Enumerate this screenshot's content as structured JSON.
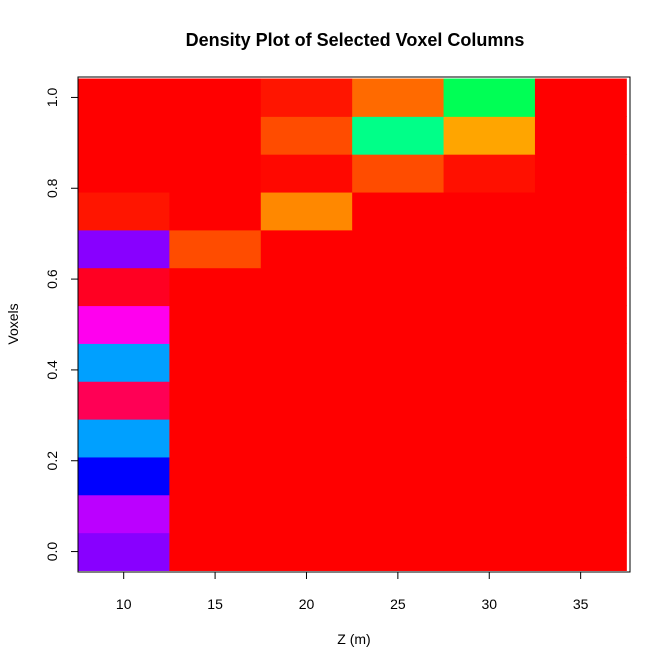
{
  "chart_data": {
    "type": "heatmap",
    "title": "Density Plot of Selected Voxel Columns",
    "xlabel": "Z (m)",
    "ylabel": "Voxels",
    "xlim": [
      7.5,
      37.7
    ],
    "ylim": [
      -0.045,
      1.045
    ],
    "x_ticks": [
      10,
      15,
      20,
      25,
      30,
      35
    ],
    "y_ticks": [
      0.0,
      0.2,
      0.4,
      0.6,
      0.8,
      1.0
    ],
    "y_tick_labels": [
      "0.0",
      "0.2",
      "0.4",
      "0.6",
      "0.8",
      "1.0"
    ],
    "grid": false,
    "x_centers": [
      10,
      15,
      20,
      25,
      30,
      35
    ],
    "y_centers": [
      0.0,
      0.0833,
      0.1667,
      0.25,
      0.3333,
      0.4167,
      0.5,
      0.5833,
      0.6667,
      0.75,
      0.8333,
      0.9167,
      1.0
    ],
    "cell_colors": [
      [
        "#8800ff",
        "#ff0000",
        "#ff0000",
        "#ff0000",
        "#ff0000",
        "#ff0000"
      ],
      [
        "#bb00ff",
        "#ff0000",
        "#ff0000",
        "#ff0000",
        "#ff0000",
        "#ff0000"
      ],
      [
        "#0000ff",
        "#ff0000",
        "#ff0000",
        "#ff0000",
        "#ff0000",
        "#ff0000"
      ],
      [
        "#00a0ff",
        "#ff0000",
        "#ff0000",
        "#ff0000",
        "#ff0000",
        "#ff0000"
      ],
      [
        "#ff0055",
        "#ff0000",
        "#ff0000",
        "#ff0000",
        "#ff0000",
        "#ff0000"
      ],
      [
        "#00a0ff",
        "#ff0000",
        "#ff0000",
        "#ff0000",
        "#ff0000",
        "#ff0000"
      ],
      [
        "#ff00ee",
        "#ff0000",
        "#ff0000",
        "#ff0000",
        "#ff0000",
        "#ff0000"
      ],
      [
        "#ff0022",
        "#ff0000",
        "#ff0000",
        "#ff0000",
        "#ff0000",
        "#ff0000"
      ],
      [
        "#8800ff",
        "#ff4c00",
        "#ff0000",
        "#ff0000",
        "#ff0000",
        "#ff0000"
      ],
      [
        "#ff1500",
        "#ff0000",
        "#ff8800",
        "#ff0000",
        "#ff0000",
        "#ff0000"
      ],
      [
        "#ff0000",
        "#ff0000",
        "#ff0800",
        "#ff4c00",
        "#ff1000",
        "#ff0000"
      ],
      [
        "#ff0000",
        "#ff0000",
        "#ff4c00",
        "#00ff88",
        "#ffa500",
        "#ff0000"
      ],
      [
        "#ff0000",
        "#ff0000",
        "#ff1500",
        "#ff6a00",
        "#00ff55",
        "#ff0000"
      ]
    ]
  }
}
